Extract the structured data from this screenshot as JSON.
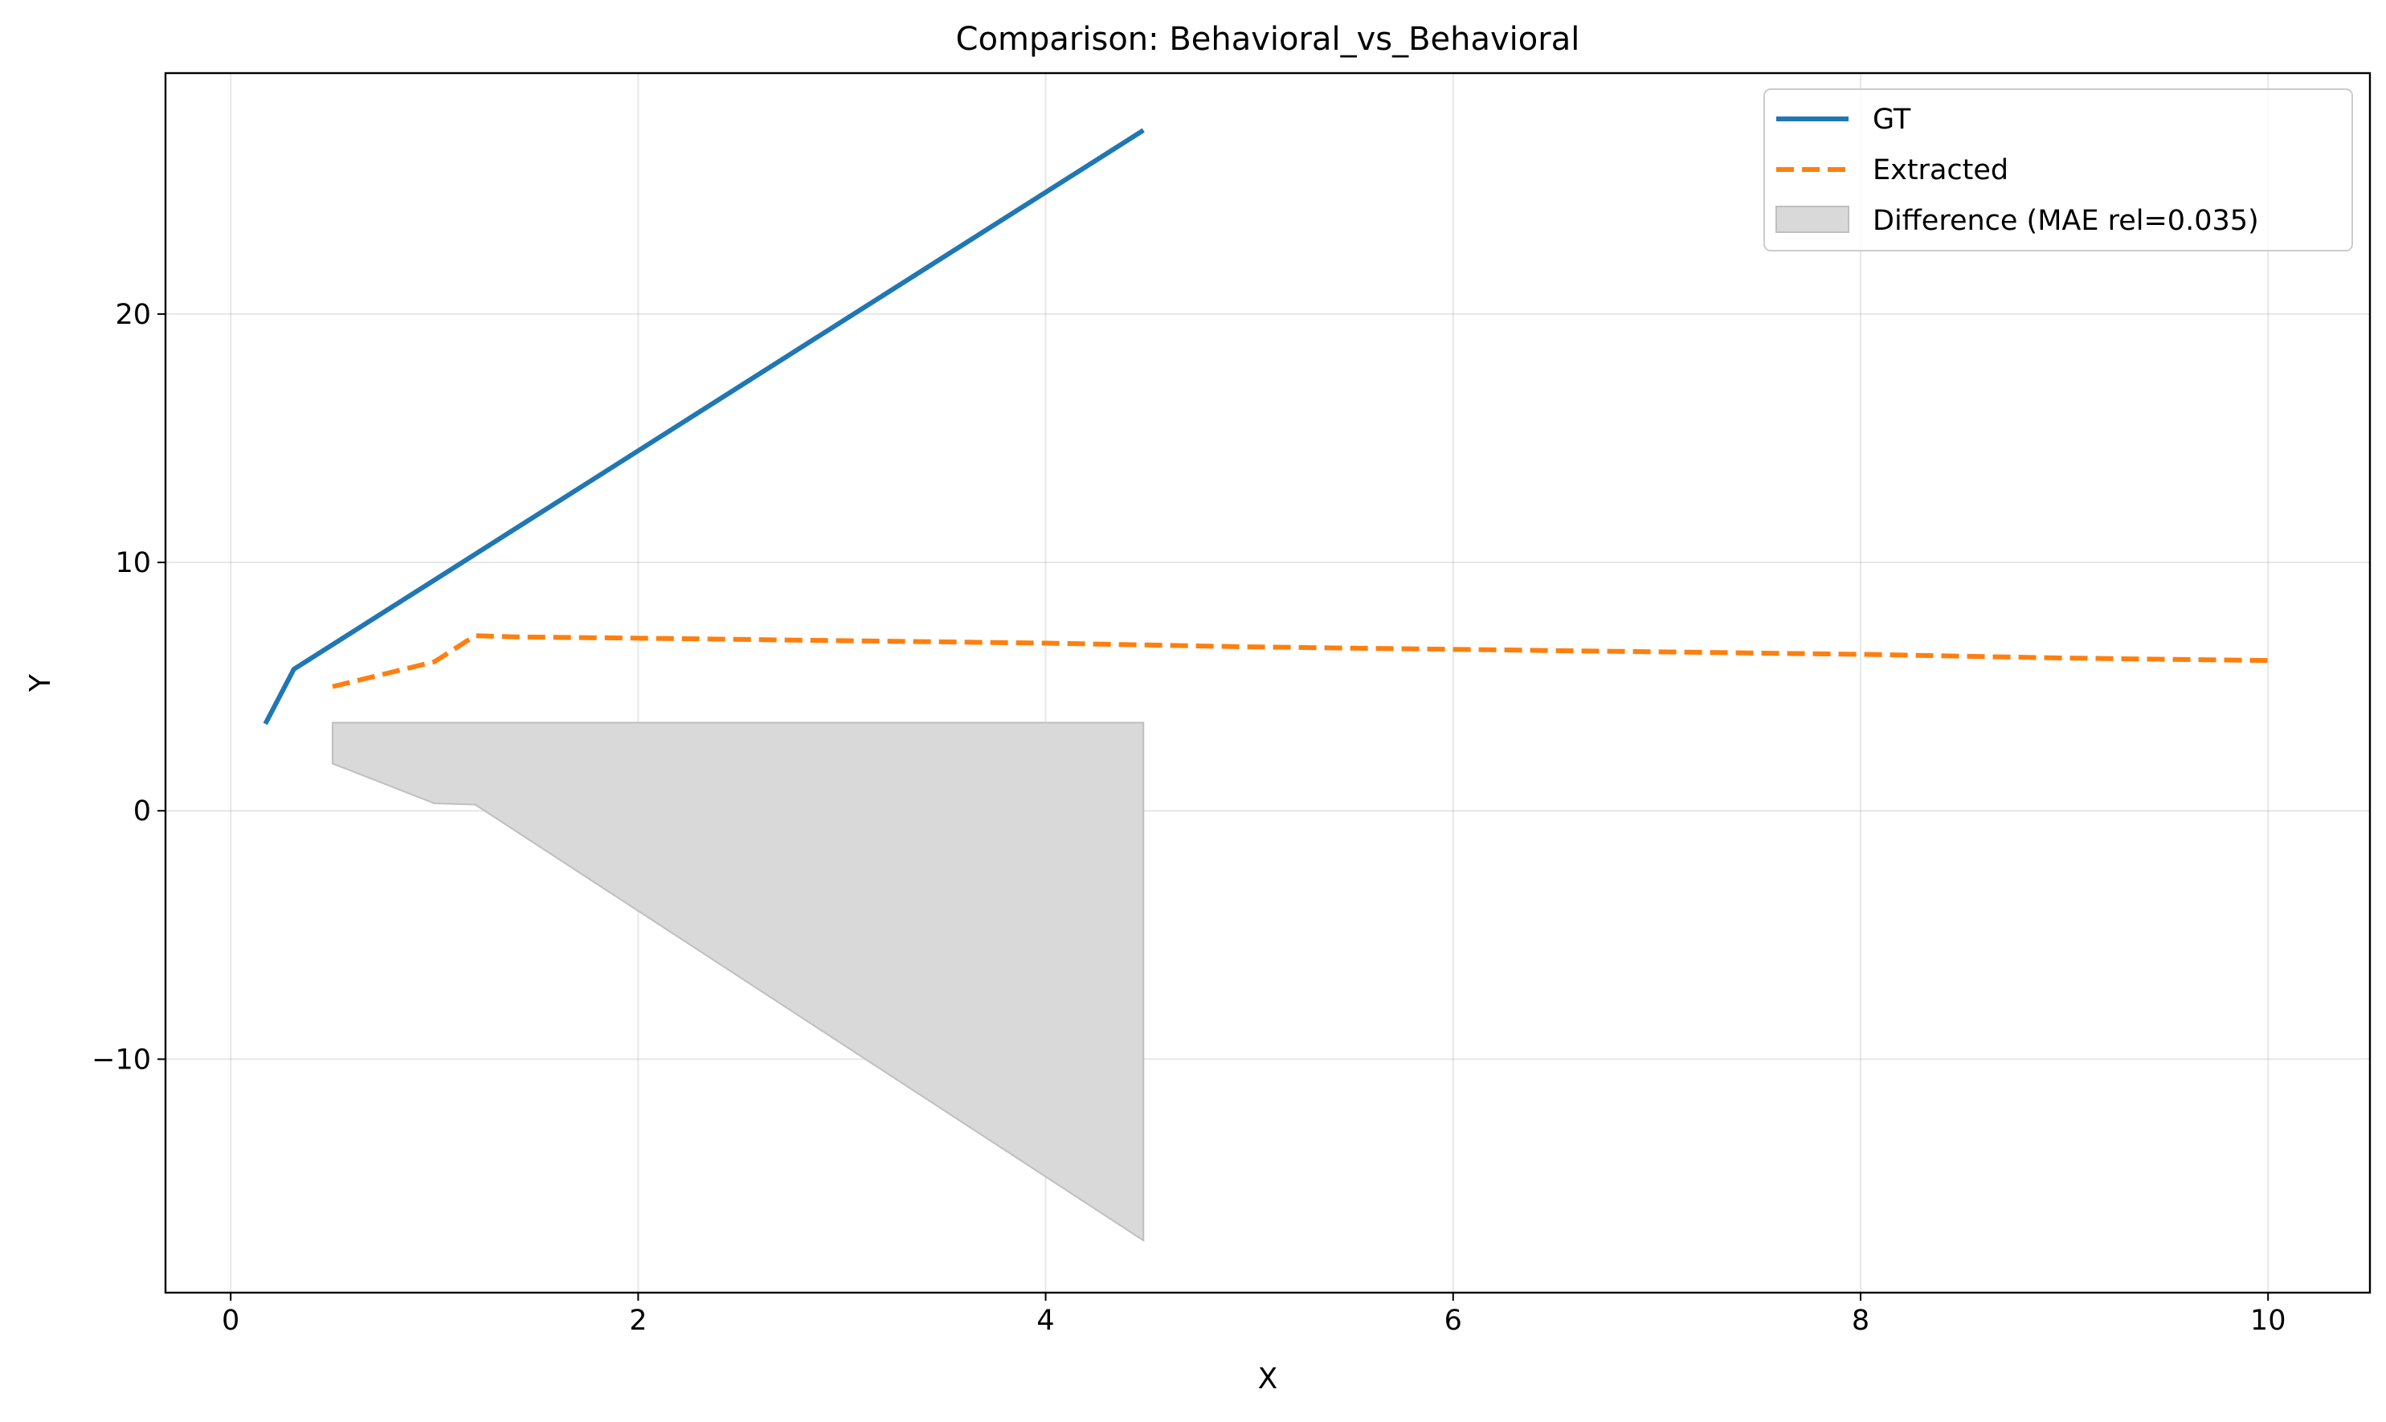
{
  "chart_data": {
    "type": "line",
    "title": "Comparison: Behavioral_vs_Behavioral",
    "xlabel": "X",
    "ylabel": "Y",
    "xlim": [
      -0.32,
      10.5
    ],
    "ylim": [
      -19.4,
      29.7
    ],
    "xticks": [
      0,
      2,
      4,
      6,
      8,
      10
    ],
    "xtick_labels": [
      "0",
      "2",
      "4",
      "6",
      "8",
      "10"
    ],
    "yticks": [
      -10,
      0,
      10,
      20
    ],
    "ytick_labels": [
      "−10",
      "0",
      "10",
      "20"
    ],
    "grid": true,
    "legend_position": "top-right",
    "series": [
      {
        "name": "GT",
        "style": "solid",
        "color": "#1f77b4",
        "x": [
          0.17,
          0.31,
          4.48
        ],
        "y": [
          3.5,
          5.7,
          27.4
        ]
      },
      {
        "name": "Extracted",
        "style": "dashed",
        "color": "#ff7f0e",
        "x": [
          0.5,
          1.0,
          1.2,
          1.4,
          2.0,
          3.0,
          4.0,
          5.0,
          6.0,
          7.0,
          8.0,
          9.0,
          10.0
        ],
        "y": [
          5.0,
          6.0,
          7.05,
          7.0,
          6.95,
          6.85,
          6.75,
          6.6,
          6.5,
          6.4,
          6.3,
          6.15,
          6.05
        ]
      }
    ],
    "fill": {
      "name": "Difference (MAE rel=0.035)",
      "color": "#d9d9d9",
      "edge_color": "#bfbfbf",
      "x": [
        0.5,
        1.0,
        1.2,
        4.48
      ],
      "lower": [
        1.9,
        0.3,
        0.25,
        -17.3
      ],
      "upper": [
        3.55,
        3.55,
        3.55,
        3.55
      ]
    }
  }
}
